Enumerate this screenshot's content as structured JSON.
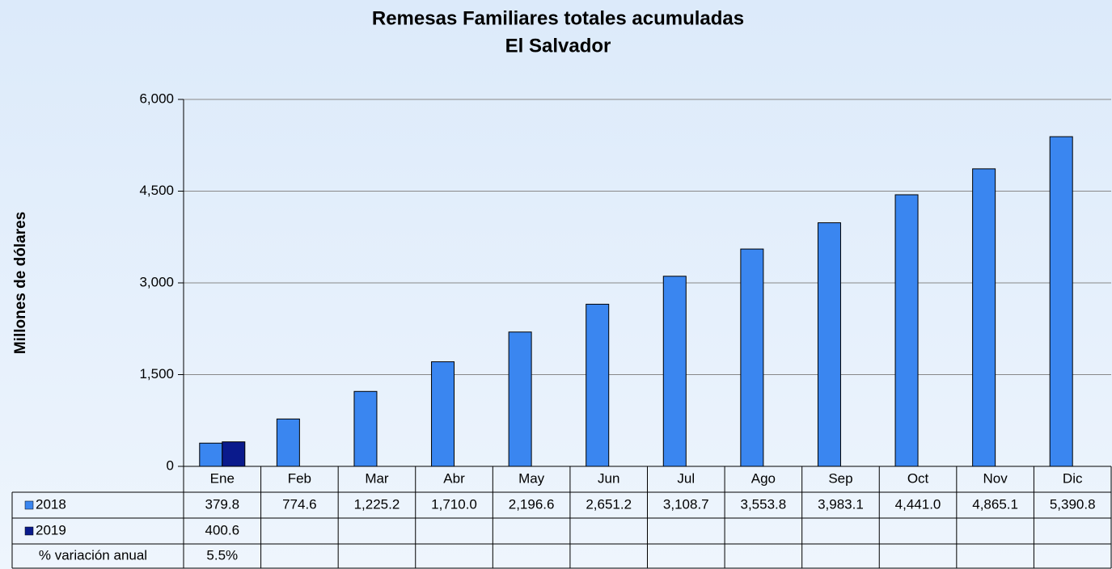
{
  "chart_data": {
    "type": "bar",
    "title": "Remesas Familiares totales acumuladas",
    "subtitle": "El Salvador",
    "y_label": "Millones de dólares",
    "categories": [
      "Ene",
      "Feb",
      "Mar",
      "Abr",
      "May",
      "Jun",
      "Jul",
      "Ago",
      "Sep",
      "Oct",
      "Nov",
      "Dic"
    ],
    "series": [
      {
        "name": "2018",
        "color": "#3a86f0",
        "values": [
          379.8,
          774.6,
          1225.2,
          1710.0,
          2196.6,
          2651.2,
          3108.7,
          3553.8,
          3983.1,
          4441.0,
          4865.1,
          5390.8
        ],
        "value_labels": [
          "379.8",
          "774.6",
          "1,225.2",
          "1,710.0",
          "2,196.6",
          "2,651.2",
          "3,108.7",
          "3,553.8",
          "3,983.1",
          "4,441.0",
          "4,865.1",
          "5,390.8"
        ]
      },
      {
        "name": "2019",
        "color": "#0a1a8c",
        "values": [
          400.6,
          null,
          null,
          null,
          null,
          null,
          null,
          null,
          null,
          null,
          null,
          null
        ],
        "value_labels": [
          "400.6",
          null,
          null,
          null,
          null,
          null,
          null,
          null,
          null,
          null,
          null,
          null
        ]
      }
    ],
    "variation": {
      "name": "% variación anual",
      "values": [
        5.5,
        null,
        null,
        null,
        null,
        null,
        null,
        null,
        null,
        null,
        null,
        null
      ],
      "value_labels": [
        "5.5%",
        null,
        null,
        null,
        null,
        null,
        null,
        null,
        null,
        null,
        null,
        null
      ]
    },
    "ylim": [
      0,
      6000
    ],
    "yticks": [
      0,
      {
        "value": 1500,
        "label": "1,500"
      },
      {
        "value": 3000,
        "label": "3,000"
      },
      {
        "value": 4500,
        "label": "4,500"
      },
      {
        "value": 6000,
        "label": "6,000"
      }
    ],
    "grid": true
  }
}
